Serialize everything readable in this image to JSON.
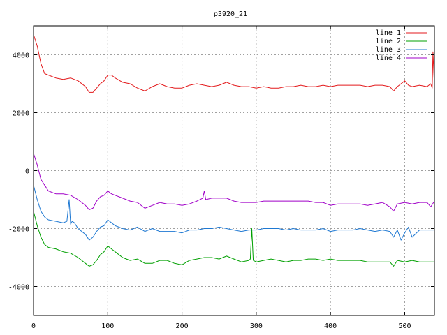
{
  "chart_data": {
    "type": "line",
    "title": "p3920_21",
    "xlabel": "",
    "ylabel": "",
    "xlim": [
      0,
      540
    ],
    "ylim": [
      -5000,
      5000
    ],
    "xticks": [
      0,
      100,
      200,
      300,
      400,
      500
    ],
    "yticks": [
      -4000,
      -2000,
      0,
      2000,
      4000
    ],
    "grid": true,
    "legend_position": "top-right",
    "series": [
      {
        "name": "line 1",
        "color": "#e31a1c",
        "x": [
          0,
          5,
          10,
          15,
          20,
          30,
          40,
          50,
          60,
          70,
          75,
          80,
          85,
          90,
          95,
          100,
          105,
          110,
          120,
          130,
          140,
          150,
          160,
          170,
          180,
          190,
          200,
          210,
          220,
          230,
          240,
          250,
          260,
          270,
          280,
          290,
          300,
          310,
          320,
          330,
          340,
          350,
          360,
          370,
          380,
          390,
          400,
          410,
          420,
          430,
          440,
          450,
          460,
          470,
          480,
          485,
          490,
          495,
          500,
          505,
          510,
          520,
          530,
          535,
          537,
          538,
          540
        ],
        "y": [
          4700,
          4300,
          3700,
          3350,
          3300,
          3200,
          3150,
          3200,
          3100,
          2900,
          2700,
          2700,
          2850,
          3000,
          3100,
          3300,
          3300,
          3200,
          3050,
          3000,
          2850,
          2750,
          2900,
          3000,
          2900,
          2850,
          2850,
          2950,
          3000,
          2950,
          2900,
          2950,
          3050,
          2950,
          2900,
          2900,
          2850,
          2900,
          2850,
          2850,
          2900,
          2900,
          2950,
          2900,
          2900,
          2950,
          2900,
          2950,
          2950,
          2950,
          2950,
          2900,
          2950,
          2950,
          2900,
          2750,
          2900,
          3000,
          3100,
          2950,
          2900,
          2950,
          2900,
          3000,
          2850,
          4100,
          2900
        ]
      },
      {
        "name": "line 2",
        "color": "#00a000",
        "x": [
          0,
          5,
          10,
          15,
          20,
          30,
          40,
          50,
          60,
          70,
          75,
          80,
          85,
          90,
          95,
          100,
          105,
          110,
          120,
          130,
          140,
          150,
          160,
          170,
          180,
          190,
          200,
          210,
          220,
          230,
          240,
          250,
          260,
          270,
          280,
          290,
          292,
          294,
          296,
          300,
          310,
          320,
          330,
          340,
          350,
          360,
          370,
          380,
          390,
          400,
          410,
          420,
          430,
          440,
          450,
          460,
          470,
          480,
          485,
          490,
          500,
          510,
          520,
          530,
          540
        ],
        "y": [
          -1400,
          -1900,
          -2300,
          -2550,
          -2650,
          -2700,
          -2800,
          -2850,
          -3000,
          -3200,
          -3300,
          -3250,
          -3100,
          -2900,
          -2800,
          -2600,
          -2700,
          -2800,
          -3000,
          -3100,
          -3050,
          -3200,
          -3200,
          -3100,
          -3100,
          -3200,
          -3250,
          -3100,
          -3050,
          -3000,
          -3000,
          -3050,
          -2950,
          -3050,
          -3150,
          -3100,
          -3050,
          -2000,
          -3100,
          -3150,
          -3100,
          -3050,
          -3100,
          -3150,
          -3100,
          -3100,
          -3050,
          -3050,
          -3100,
          -3050,
          -3100,
          -3100,
          -3100,
          -3100,
          -3150,
          -3150,
          -3150,
          -3150,
          -3300,
          -3100,
          -3150,
          -3100,
          -3150,
          -3150,
          -3150
        ]
      },
      {
        "name": "line 3",
        "color": "#1e78d2",
        "x": [
          0,
          5,
          10,
          15,
          20,
          30,
          40,
          45,
          48,
          50,
          52,
          55,
          60,
          70,
          75,
          80,
          85,
          90,
          95,
          100,
          105,
          110,
          120,
          130,
          140,
          150,
          160,
          170,
          180,
          190,
          200,
          210,
          220,
          230,
          240,
          250,
          260,
          270,
          280,
          290,
          300,
          310,
          320,
          330,
          340,
          350,
          360,
          370,
          380,
          390,
          400,
          410,
          420,
          430,
          440,
          450,
          460,
          470,
          480,
          485,
          490,
          495,
          500,
          505,
          510,
          520,
          530,
          540
        ],
        "y": [
          -500,
          -1000,
          -1400,
          -1600,
          -1700,
          -1750,
          -1800,
          -1750,
          -1000,
          -1850,
          -1750,
          -1800,
          -2000,
          -2200,
          -2400,
          -2300,
          -2100,
          -1950,
          -1900,
          -1700,
          -1800,
          -1900,
          -2000,
          -2050,
          -1950,
          -2100,
          -2000,
          -2100,
          -2100,
          -2100,
          -2150,
          -2050,
          -2050,
          -2000,
          -2000,
          -1950,
          -2000,
          -2050,
          -2100,
          -2050,
          -2050,
          -2000,
          -2000,
          -2000,
          -2050,
          -2000,
          -2050,
          -2050,
          -2050,
          -2000,
          -2100,
          -2050,
          -2050,
          -2050,
          -2000,
          -2050,
          -2100,
          -2050,
          -2100,
          -2300,
          -2050,
          -2400,
          -2150,
          -1950,
          -2300,
          -2050,
          -2050,
          -2050
        ]
      },
      {
        "name": "line 4",
        "color": "#a000c8",
        "x": [
          0,
          5,
          10,
          15,
          20,
          30,
          40,
          50,
          60,
          70,
          75,
          80,
          85,
          90,
          95,
          100,
          105,
          110,
          120,
          130,
          140,
          150,
          160,
          170,
          180,
          190,
          200,
          210,
          220,
          228,
          230,
          232,
          240,
          250,
          260,
          270,
          280,
          290,
          300,
          310,
          320,
          330,
          340,
          350,
          360,
          370,
          380,
          390,
          400,
          410,
          420,
          430,
          440,
          450,
          460,
          470,
          480,
          485,
          490,
          500,
          510,
          520,
          530,
          535,
          540
        ],
        "y": [
          600,
          200,
          -300,
          -500,
          -700,
          -800,
          -800,
          -850,
          -1000,
          -1200,
          -1350,
          -1300,
          -1050,
          -900,
          -850,
          -700,
          -800,
          -850,
          -950,
          -1050,
          -1100,
          -1300,
          -1200,
          -1100,
          -1150,
          -1150,
          -1200,
          -1150,
          -1050,
          -950,
          -700,
          -1000,
          -950,
          -950,
          -950,
          -1050,
          -1100,
          -1100,
          -1100,
          -1050,
          -1050,
          -1050,
          -1050,
          -1050,
          -1050,
          -1050,
          -1100,
          -1100,
          -1200,
          -1150,
          -1150,
          -1150,
          -1150,
          -1200,
          -1150,
          -1100,
          -1250,
          -1400,
          -1150,
          -1100,
          -1150,
          -1100,
          -1100,
          -1250,
          -1050
        ]
      }
    ]
  }
}
